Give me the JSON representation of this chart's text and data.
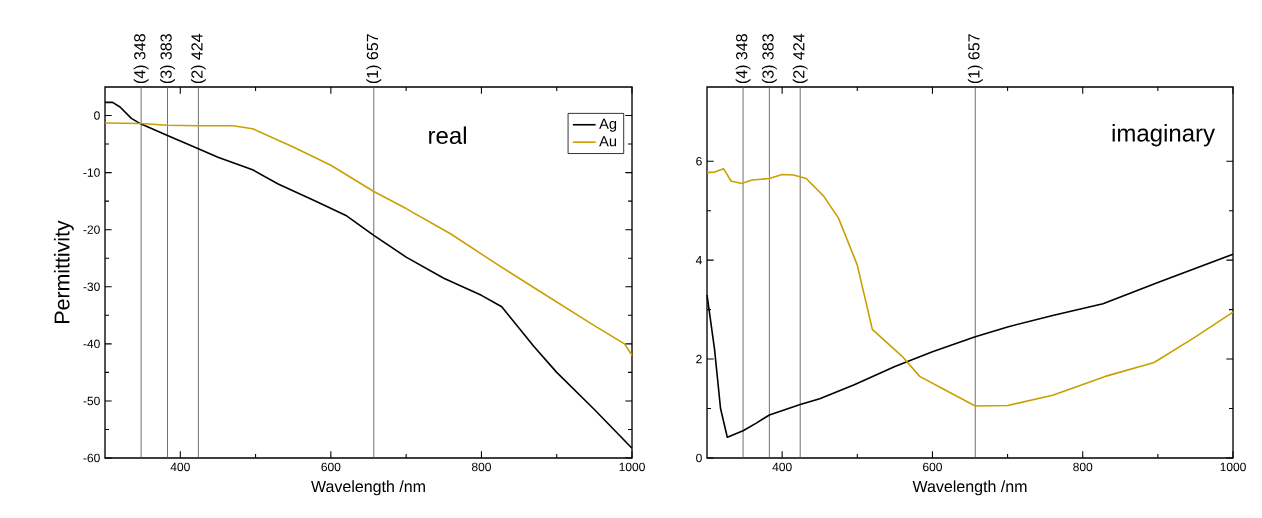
{
  "chart_data": [
    {
      "type": "line",
      "xlabel": "Wavelength /nm",
      "ylabel": "Permittivity",
      "annotations": [
        "real"
      ],
      "xlim": [
        300,
        1000
      ],
      "ylim": [
        -60,
        5
      ],
      "xticks": [
        400,
        600,
        800,
        1000
      ],
      "yticks": [
        -60,
        -50,
        -40,
        -30,
        -20,
        -10,
        0
      ],
      "legend": "top right",
      "grid": false,
      "x": [
        300,
        310,
        320,
        335,
        348,
        383,
        424,
        450,
        496,
        530,
        580,
        620,
        657,
        700,
        750,
        800,
        827,
        870,
        900,
        950,
        1000
      ],
      "series": [
        {
          "name": "Ag",
          "color": "#000000",
          "values": [
            2.3,
            2.3,
            1.5,
            -0.5,
            -1.5,
            -3.5,
            -5.8,
            -7.3,
            -9.5,
            -12,
            -15,
            -17.5,
            -21,
            -24.8,
            -28.5,
            -31.5,
            -33.5,
            -40.5,
            -45,
            -51.5,
            -58.3
          ]
        },
        {
          "name": "Au",
          "color": "#c8a000",
          "x": [
            300,
            348,
            383,
            424,
            470,
            496,
            550,
            600,
            657,
            700,
            760,
            820,
            880,
            950,
            990,
            1000
          ],
          "values": [
            -1.3,
            -1.4,
            -1.7,
            -1.8,
            -1.8,
            -2.3,
            -5.5,
            -8.7,
            -13.3,
            -16.3,
            -20.8,
            -26,
            -31,
            -36.8,
            -40,
            -42
          ]
        }
      ],
      "ref_lines": [
        {
          "axis": "x",
          "value": 348,
          "label": "(4) 348"
        },
        {
          "axis": "x",
          "value": 383,
          "label": "(3) 383"
        },
        {
          "axis": "x",
          "value": 424,
          "label": "(2) 424"
        },
        {
          "axis": "x",
          "value": 657,
          "label": "(1) 657"
        }
      ]
    },
    {
      "type": "line",
      "xlabel": "Wavelength /nm",
      "annotations": [
        "imaginary"
      ],
      "xlim": [
        300,
        1000
      ],
      "ylim": [
        0,
        7.5
      ],
      "xticks": [
        400,
        600,
        800,
        1000
      ],
      "yticks": [
        0,
        2,
        4,
        6
      ],
      "grid": false,
      "x": [
        300,
        310,
        318,
        327,
        348,
        365,
        383,
        424,
        450,
        496,
        550,
        600,
        657,
        700,
        760,
        827,
        900,
        1000
      ],
      "series": [
        {
          "color": "#000000",
          "values": [
            3.3,
            2.2,
            1.0,
            0.42,
            0.55,
            0.7,
            0.87,
            1.08,
            1.2,
            1.48,
            1.85,
            2.15,
            2.45,
            2.65,
            2.88,
            3.12,
            3.55,
            4.12
          ]
        },
        {
          "color": "#c8a000",
          "x": [
            300,
            310,
            322,
            332,
            346,
            360,
            383,
            400,
            415,
            432,
            455,
            475,
            500,
            520,
            560,
            583,
            620,
            657,
            700,
            760,
            830,
            895,
            950,
            1000
          ],
          "values": [
            5.77,
            5.78,
            5.85,
            5.6,
            5.55,
            5.62,
            5.65,
            5.73,
            5.72,
            5.65,
            5.3,
            4.85,
            3.9,
            2.6,
            2.05,
            1.65,
            1.35,
            1.05,
            1.06,
            1.27,
            1.65,
            1.93,
            2.45,
            2.95
          ]
        }
      ],
      "ref_lines": [
        {
          "axis": "x",
          "value": 348,
          "label": "(4) 348"
        },
        {
          "axis": "x",
          "value": 383,
          "label": "(3) 383"
        },
        {
          "axis": "x",
          "value": 424,
          "label": "(2) 424"
        },
        {
          "axis": "x",
          "value": 657,
          "label": "(1) 657"
        }
      ]
    }
  ]
}
